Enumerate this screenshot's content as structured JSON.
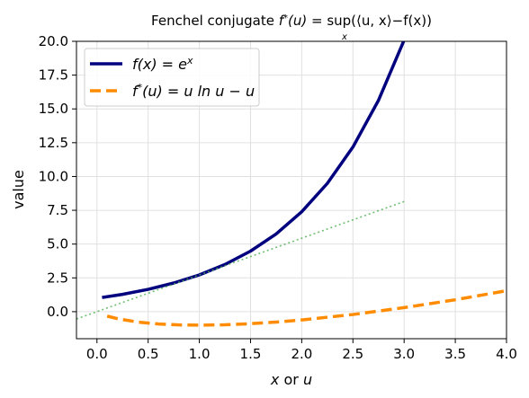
{
  "chart_data": {
    "type": "line",
    "title": "Fenchel conjugate f*(u) = sup⟨u,x⟩−f(x)",
    "title_parts": {
      "main": "Fenchel conjugate ",
      "f": "f",
      "star": "*",
      "u_arg": "(u) = ",
      "sup": "sup",
      "sub": "x",
      "rest": "(⟨u, x⟩−f(x))"
    },
    "xlabel": "x or u",
    "xlabel_parts": {
      "var1": "x",
      "mid": " or ",
      "var2": "u"
    },
    "ylabel": "value",
    "xlim": [
      -0.2,
      4.0
    ],
    "ylim": [
      -2.0,
      20.0
    ],
    "xticks": [
      "0.0",
      "0.5",
      "1.0",
      "1.5",
      "2.0",
      "2.5",
      "3.0",
      "3.5",
      "4.0"
    ],
    "yticks": [
      "0.0",
      "2.5",
      "5.0",
      "7.5",
      "10.0",
      "12.5",
      "15.0",
      "17.5",
      "20.0"
    ],
    "grid": true,
    "legend_position": "top-left",
    "series": [
      {
        "name": "f(x) = e^x",
        "legend": {
          "a": "f",
          "b": "(x) = e",
          "sup": "x"
        },
        "color": "#00007f",
        "style": "solid",
        "x": [
          0.05,
          0.25,
          0.5,
          0.75,
          1.0,
          1.25,
          1.5,
          1.75,
          2.0,
          2.25,
          2.5,
          2.75,
          3.0
        ],
        "y": [
          1.05,
          1.28,
          1.65,
          2.12,
          2.72,
          3.49,
          4.48,
          5.75,
          7.39,
          9.49,
          12.18,
          15.64,
          20.09
        ]
      },
      {
        "name": "f*(u) = u ln u − u",
        "legend": {
          "a": "f",
          "sup": "*",
          "b": "(u) = u ln u − u"
        },
        "color": "#ff8c00",
        "style": "dashed",
        "x": [
          0.1,
          0.2,
          0.4,
          0.6,
          0.8,
          1.0,
          1.25,
          1.5,
          1.75,
          2.0,
          2.5,
          3.0,
          3.5,
          4.0
        ],
        "y": [
          -0.33,
          -0.52,
          -0.77,
          -0.91,
          -0.98,
          -1.0,
          -0.97,
          -0.89,
          -0.77,
          -0.61,
          -0.21,
          0.3,
          0.88,
          1.55
        ]
      },
      {
        "name": "",
        "color": "#4caf50",
        "style": "dotted",
        "x": [
          -0.2,
          3.0
        ],
        "y": [
          -0.54,
          8.15
        ]
      }
    ]
  }
}
